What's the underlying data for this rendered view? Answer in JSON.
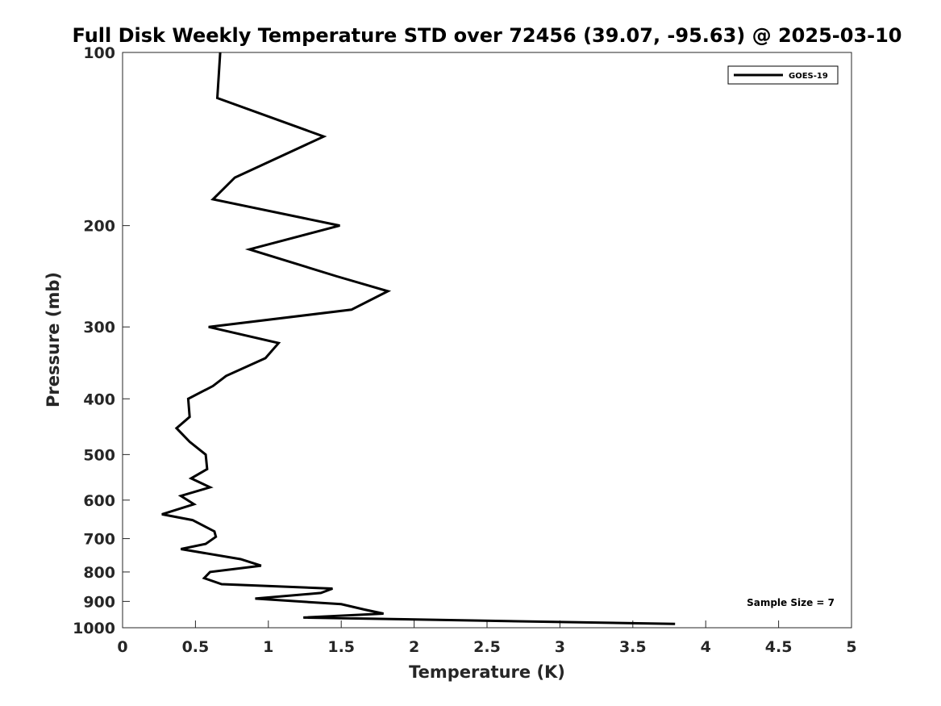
{
  "chart_data": {
    "type": "line",
    "title": "Full Disk Weekly Temperature STD over 72456 (39.07, -95.63) @ 2025-03-10",
    "xlabel": "Temperature (K)",
    "ylabel": "Pressure (mb)",
    "xlim": [
      0,
      5
    ],
    "ylim": [
      100,
      1000
    ],
    "y_scale": "log",
    "y_reversed": true,
    "xticks": [
      "0",
      "0.5",
      "1",
      "1.5",
      "2",
      "2.5",
      "3",
      "3.5",
      "4",
      "4.5",
      "5"
    ],
    "xtick_values": [
      0,
      0.5,
      1,
      1.5,
      2,
      2.5,
      3,
      3.5,
      4,
      4.5,
      5
    ],
    "yticks": [
      "100",
      "200",
      "300",
      "400",
      "500",
      "600",
      "700",
      "800",
      "900",
      "1000"
    ],
    "ytick_values": [
      100,
      200,
      300,
      400,
      500,
      600,
      700,
      800,
      900,
      1000
    ],
    "grid": false,
    "legend_position": "top-right",
    "series": [
      {
        "name": "GOES-19",
        "color": "#000000",
        "points": [
          [
            0.67,
            100
          ],
          [
            0.65,
            120
          ],
          [
            1.38,
            140
          ],
          [
            0.77,
            165
          ],
          [
            0.62,
            180
          ],
          [
            1.49,
            200
          ],
          [
            0.87,
            220
          ],
          [
            1.47,
            245
          ],
          [
            1.82,
            260
          ],
          [
            1.57,
            280
          ],
          [
            0.59,
            300
          ],
          [
            1.07,
            320
          ],
          [
            0.98,
            340
          ],
          [
            0.71,
            365
          ],
          [
            0.62,
            380
          ],
          [
            0.45,
            400
          ],
          [
            0.46,
            430
          ],
          [
            0.37,
            450
          ],
          [
            0.46,
            475
          ],
          [
            0.57,
            500
          ],
          [
            0.58,
            530
          ],
          [
            0.47,
            550
          ],
          [
            0.6,
            570
          ],
          [
            0.4,
            590
          ],
          [
            0.49,
            610
          ],
          [
            0.27,
            635
          ],
          [
            0.48,
            650
          ],
          [
            0.63,
            680
          ],
          [
            0.64,
            695
          ],
          [
            0.57,
            715
          ],
          [
            0.4,
            730
          ],
          [
            0.81,
            760
          ],
          [
            0.95,
            780
          ],
          [
            0.6,
            800
          ],
          [
            0.56,
            820
          ],
          [
            0.68,
            840
          ],
          [
            1.44,
            855
          ],
          [
            1.36,
            870
          ],
          [
            0.91,
            890
          ],
          [
            1.5,
            910
          ],
          [
            1.66,
            930
          ],
          [
            1.79,
            945
          ],
          [
            1.24,
            960
          ],
          [
            3.79,
            985
          ]
        ]
      }
    ],
    "annotation": "Sample Size = 7"
  }
}
